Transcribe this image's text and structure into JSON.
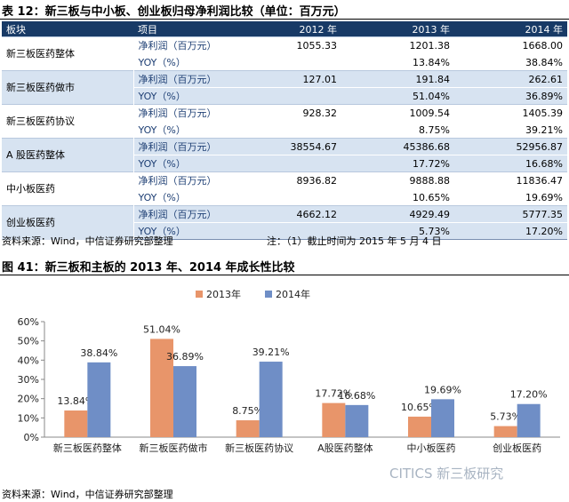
{
  "table": {
    "caption": "表 12：新三板与中小板、创业板归母净利润比较（单位：百万元）",
    "headers": [
      "板块",
      "项目",
      "2012 年",
      "2013 年",
      "2014 年"
    ],
    "groups": [
      {
        "name": "新三板医药整体",
        "rows": [
          {
            "item": "净利润（百万元）",
            "values": [
              "1055.33",
              "1201.38",
              "1668.00"
            ]
          },
          {
            "item": "YOY（%）",
            "values": [
              "",
              "13.84%",
              "38.84%"
            ]
          }
        ]
      },
      {
        "name": "新三板医药做市",
        "rows": [
          {
            "item": "净利润（百万元）",
            "values": [
              "127.01",
              "191.84",
              "262.61"
            ]
          },
          {
            "item": "YOY（%）",
            "values": [
              "",
              "51.04%",
              "36.89%"
            ]
          }
        ]
      },
      {
        "name": "新三板医药协议",
        "rows": [
          {
            "item": "净利润（百万元）",
            "values": [
              "928.32",
              "1009.54",
              "1405.39"
            ]
          },
          {
            "item": "YOY（%）",
            "values": [
              "",
              "8.75%",
              "39.21%"
            ]
          }
        ]
      },
      {
        "name": "A 股医药整体",
        "rows": [
          {
            "item": "净利润（百万元）",
            "values": [
              "38554.67",
              "45386.68",
              "52956.87"
            ]
          },
          {
            "item": "YOY（%）",
            "values": [
              "",
              "17.72%",
              "16.68%"
            ]
          }
        ]
      },
      {
        "name": "中小板医药",
        "rows": [
          {
            "item": "净利润（百万元）",
            "values": [
              "8936.82",
              "9888.88",
              "11836.47"
            ]
          },
          {
            "item": "YOY（%）",
            "values": [
              "",
              "10.65%",
              "19.69%"
            ]
          }
        ]
      },
      {
        "name": "创业板医药",
        "rows": [
          {
            "item": "净利润（百万元）",
            "values": [
              "4662.12",
              "4929.49",
              "5777.35"
            ]
          },
          {
            "item": "YOY（%）",
            "values": [
              "",
              "5.73%",
              "17.20%"
            ]
          }
        ]
      }
    ],
    "source": "资料来源：Wind，中信证券研究部整理",
    "note": "注：（1）截止时间为 2015 年 5 月 4 日"
  },
  "chart_title": "图 41：新三板和主板的 2013 年、2014 年成长性比较",
  "chart_source": "资料来源：Wind，中信证券研究部整理",
  "watermark": "CITICS 新三板研究",
  "chart_data": {
    "type": "bar",
    "categories": [
      "新三板医药整体",
      "新三板医药做市",
      "新三板医药协议",
      "A股医药整体",
      "中小板医药",
      "创业板医药"
    ],
    "series": [
      {
        "name": "2013年",
        "values": [
          13.84,
          51.04,
          8.75,
          17.72,
          10.65,
          5.73
        ],
        "labels": [
          "13.84%",
          "51.04%",
          "8.75%",
          "17.72%",
          "10.65%",
          "5.73%"
        ],
        "color": "#e8956a"
      },
      {
        "name": "2014年",
        "values": [
          38.84,
          36.89,
          39.21,
          16.68,
          19.69,
          17.2
        ],
        "labels": [
          "38.84%",
          "36.89%",
          "39.21%",
          "16.68%",
          "19.69%",
          "17.20%"
        ],
        "color": "#6f8ec6"
      }
    ],
    "ylim": [
      0,
      60
    ],
    "yticks": [
      "0%",
      "10%",
      "20%",
      "30%",
      "40%",
      "50%",
      "60%"
    ],
    "legend_position": "top",
    "grid": false
  }
}
